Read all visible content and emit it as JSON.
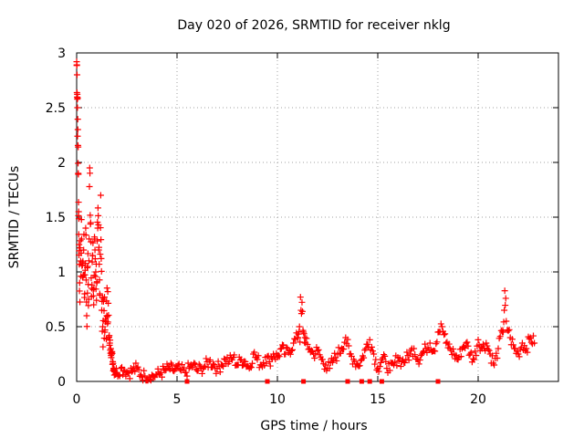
{
  "chart_data": {
    "type": "scatter",
    "title": "Day 020 of 2026, SRMTID for receiver nklg",
    "xlabel": "GPS time / hours",
    "ylabel": "SRMTID / TECUs",
    "xlim": [
      0,
      24
    ],
    "ylim": [
      0,
      3
    ],
    "xticks": [
      0,
      5,
      10,
      15,
      20
    ],
    "xtick_labels": [
      "0",
      "5",
      "10",
      "15",
      "20"
    ],
    "yticks": [
      0,
      0.5,
      1,
      1.5,
      2,
      2.5,
      3
    ],
    "ytick_labels": [
      "0",
      "0.5",
      "1",
      "1.5",
      "2",
      "2.5",
      "3"
    ],
    "grid": true,
    "marker": "+",
    "color": "#ff0000",
    "series": [
      {
        "name": "SRMTID",
        "x": [
          0.0,
          0.02,
          0.04,
          0.06,
          0.08,
          0.1,
          0.12,
          0.15,
          0.2,
          0.25,
          0.3,
          0.35,
          0.4,
          0.45,
          0.5,
          0.55,
          0.6,
          0.65,
          0.7,
          0.75,
          0.8,
          0.85,
          0.9,
          0.95,
          1.0,
          1.05,
          1.1,
          1.15,
          1.2,
          1.25,
          1.3,
          1.35,
          1.4,
          1.45,
          1.5,
          1.55,
          1.6,
          1.65,
          1.7,
          1.75,
          1.8,
          1.85,
          1.9,
          2.0,
          2.2,
          2.4,
          2.6,
          2.8,
          3.0,
          3.2,
          3.4,
          3.6,
          3.8,
          4.0,
          4.2,
          4.4,
          4.6,
          4.8,
          5.0,
          5.2,
          5.4,
          5.6,
          5.8,
          6.0,
          6.2,
          6.4,
          6.6,
          6.8,
          7.0,
          7.2,
          7.4,
          7.6,
          7.8,
          8.0,
          8.2,
          8.4,
          8.6,
          8.8,
          9.0,
          9.2,
          9.4,
          9.6,
          9.8,
          10.0,
          10.2,
          10.4,
          10.6,
          10.8,
          11.0,
          11.1,
          11.2,
          11.3,
          11.4,
          11.6,
          11.8,
          12.0,
          12.2,
          12.4,
          12.6,
          12.8,
          13.0,
          13.2,
          13.4,
          13.6,
          13.8,
          14.0,
          14.2,
          14.4,
          14.6,
          14.8,
          15.0,
          15.2,
          15.4,
          15.6,
          15.8,
          16.0,
          16.2,
          16.4,
          16.6,
          16.8,
          17.0,
          17.2,
          17.4,
          17.6,
          17.8,
          18.0,
          18.2,
          18.4,
          18.6,
          18.8,
          19.0,
          19.2,
          19.4,
          19.6,
          19.8,
          20.0,
          20.2,
          20.4,
          20.6,
          20.8,
          21.0,
          21.2,
          21.3,
          21.4,
          21.6,
          21.8,
          22.0,
          22.2,
          22.4,
          22.6,
          22.8
        ],
        "y": [
          2.92,
          2.8,
          2.5,
          2.3,
          1.9,
          1.55,
          1.25,
          0.9,
          1.1,
          1.3,
          0.95,
          1.2,
          0.8,
          1.4,
          0.6,
          1.05,
          0.75,
          1.95,
          1.45,
          0.85,
          1.15,
          0.7,
          1.3,
          1.0,
          0.9,
          1.4,
          1.2,
          0.8,
          1.7,
          0.65,
          0.5,
          0.75,
          0.45,
          0.55,
          0.6,
          0.82,
          0.4,
          0.35,
          0.3,
          0.25,
          0.18,
          0.12,
          0.1,
          0.08,
          0.12,
          0.1,
          0.08,
          0.1,
          0.12,
          0.06,
          0.05,
          0.04,
          0.05,
          0.06,
          0.08,
          0.1,
          0.12,
          0.1,
          0.12,
          0.1,
          0.08,
          0.12,
          0.15,
          0.1,
          0.12,
          0.14,
          0.18,
          0.16,
          0.12,
          0.15,
          0.2,
          0.18,
          0.22,
          0.15,
          0.2,
          0.18,
          0.12,
          0.25,
          0.2,
          0.15,
          0.22,
          0.18,
          0.25,
          0.22,
          0.3,
          0.25,
          0.28,
          0.35,
          0.4,
          0.5,
          0.62,
          0.45,
          0.35,
          0.3,
          0.25,
          0.28,
          0.2,
          0.15,
          0.12,
          0.2,
          0.25,
          0.3,
          0.4,
          0.25,
          0.2,
          0.15,
          0.2,
          0.3,
          0.38,
          0.25,
          0.12,
          0.2,
          0.18,
          0.1,
          0.15,
          0.22,
          0.18,
          0.2,
          0.25,
          0.3,
          0.2,
          0.25,
          0.3,
          0.35,
          0.28,
          0.45,
          0.5,
          0.35,
          0.3,
          0.25,
          0.2,
          0.3,
          0.35,
          0.25,
          0.2,
          0.38,
          0.3,
          0.35,
          0.25,
          0.15,
          0.3,
          0.45,
          0.65,
          0.55,
          0.4,
          0.3,
          0.25,
          0.35,
          0.3,
          0.4,
          0.35
        ]
      }
    ],
    "outlier_markers_at_zero": [
      5.5,
      9.5,
      11.3,
      13.5,
      14.2,
      14.6,
      15.2,
      18.0
    ]
  }
}
